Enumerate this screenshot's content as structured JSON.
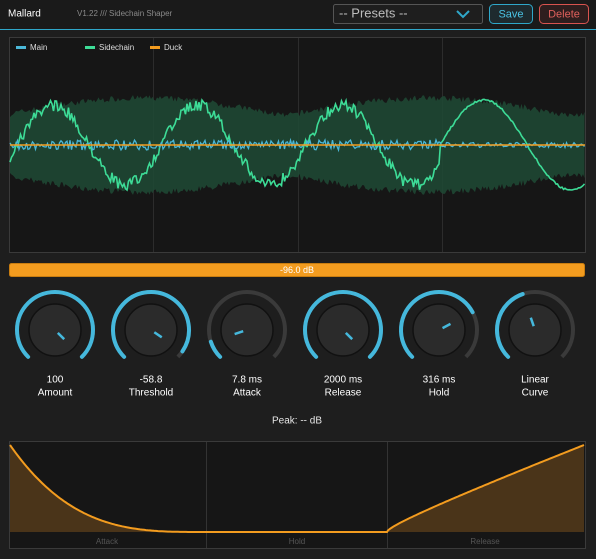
{
  "header": {
    "title": "Mallard",
    "version": "V1.22 /// Sidechain Shaper"
  },
  "presets": {
    "placeholder": "-- Presets --",
    "save": "Save",
    "delete": "Delete"
  },
  "scope": {
    "legend": [
      "Main",
      "Sidechain",
      "Duck"
    ]
  },
  "meter": {
    "label": "-96.0 dB"
  },
  "knobs": [
    {
      "value": "100",
      "label": "Amount"
    },
    {
      "value": "-58.8",
      "label": "Threshold"
    },
    {
      "value": "7.8 ms",
      "label": "Attack"
    },
    {
      "value": "2000 ms",
      "label": "Release"
    },
    {
      "value": "316 ms",
      "label": "Hold"
    },
    {
      "value": "Linear",
      "label": "Curve"
    }
  ],
  "peak": "Peak: -- dB",
  "envelope": {
    "labels": [
      "Attack",
      "Hold",
      "Release"
    ]
  }
}
